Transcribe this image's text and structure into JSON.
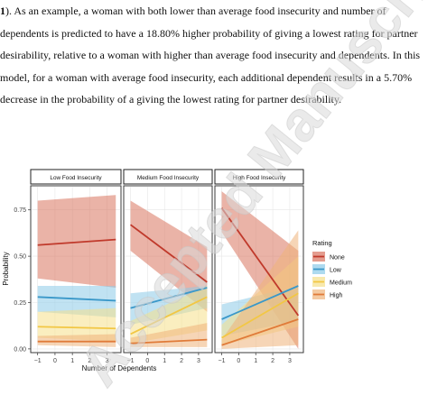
{
  "paragraph": {
    "lines": [
      {
        "bold_prefix": "1",
        "text": "). As an example, a woman with both lower than average food insecurity and number of"
      },
      {
        "bold_prefix": "",
        "text": "dependents is predicted to have a 18.80% higher probability of giving a lowest rating for partner"
      },
      {
        "bold_prefix": "",
        "text": "desirability, relative to a woman with higher than average food insecurity and dependents. In this"
      },
      {
        "bold_prefix": "",
        "text": "model, for a woman with average food insecurity, each additional dependent results in a 5.70%"
      },
      {
        "bold_prefix": "",
        "text": "decrease in the probability of a giving the lowest rating for partner desirability."
      }
    ]
  },
  "watermark": {
    "text": "Accepted Manuscript",
    "color": "#d8d8d8"
  },
  "chart_data": {
    "type": "line",
    "facets": [
      "Low Food Insecurity",
      "Medium Food Insecurity",
      "High Food Insecurity"
    ],
    "xlabel": "Number of Dependents",
    "ylabel": "Probability",
    "xlim": [
      -1.4,
      3.8
    ],
    "ylim": [
      -0.02,
      0.88
    ],
    "x_ticks": [
      -1,
      0,
      1,
      2,
      3
    ],
    "y_ticks": [
      0.0,
      0.25,
      0.5,
      0.75
    ],
    "y_tick_labels": [
      "0.00",
      "0.25",
      "0.50",
      "0.75"
    ],
    "legend": {
      "title": "Rating",
      "position": "right"
    },
    "grid": true,
    "series": [
      {
        "name": "None",
        "color": "#c0392b",
        "band_color": "#d9745f",
        "facets": [
          {
            "x": [
              -1,
              3.5
            ],
            "y": [
              0.56,
              0.59
            ],
            "lo": [
              0.38,
              0.33
            ],
            "hi": [
              0.8,
              0.83
            ]
          },
          {
            "x": [
              -1,
              3.5
            ],
            "y": [
              0.67,
              0.36
            ],
            "lo": [
              0.53,
              0.2
            ],
            "hi": [
              0.8,
              0.55
            ]
          },
          {
            "x": [
              -1,
              3.5
            ],
            "y": [
              0.76,
              0.18
            ],
            "lo": [
              0.63,
              0.0
            ],
            "hi": [
              0.85,
              0.53
            ]
          }
        ]
      },
      {
        "name": "Low",
        "color": "#3a98c9",
        "band_color": "#8ccbe8",
        "facets": [
          {
            "x": [
              -1,
              3.5
            ],
            "y": [
              0.28,
              0.26
            ],
            "lo": [
              0.2,
              0.17
            ],
            "hi": [
              0.34,
              0.34
            ]
          },
          {
            "x": [
              -1,
              3.5
            ],
            "y": [
              0.22,
              0.33
            ],
            "lo": [
              0.13,
              0.22
            ],
            "hi": [
              0.3,
              0.34
            ]
          },
          {
            "x": [
              -1,
              3.5
            ],
            "y": [
              0.16,
              0.34
            ],
            "lo": [
              0.07,
              0.15
            ],
            "hi": [
              0.24,
              0.34
            ]
          }
        ]
      },
      {
        "name": "Medium",
        "color": "#f2c744",
        "band_color": "#f5e08a",
        "facets": [
          {
            "x": [
              -1,
              3.5
            ],
            "y": [
              0.12,
              0.11
            ],
            "lo": [
              0.06,
              0.04
            ],
            "hi": [
              0.2,
              0.22
            ]
          },
          {
            "x": [
              -1,
              3.5
            ],
            "y": [
              0.08,
              0.28
            ],
            "lo": [
              0.03,
              0.1
            ],
            "hi": [
              0.15,
              0.34
            ]
          },
          {
            "x": [
              -1,
              3.5
            ],
            "y": [
              0.06,
              0.3
            ],
            "lo": [
              0.02,
              0.12
            ],
            "hi": [
              0.13,
              0.5
            ]
          }
        ]
      },
      {
        "name": "High",
        "color": "#e07b39",
        "band_color": "#efb37a",
        "facets": [
          {
            "x": [
              -1,
              3.5
            ],
            "y": [
              0.04,
              0.04
            ],
            "lo": [
              0.02,
              0.01
            ],
            "hi": [
              0.07,
              0.08
            ]
          },
          {
            "x": [
              -1,
              3.5
            ],
            "y": [
              0.03,
              0.05
            ],
            "lo": [
              0.01,
              0.01
            ],
            "hi": [
              0.06,
              0.14
            ]
          },
          {
            "x": [
              -1,
              3.5
            ],
            "y": [
              0.02,
              0.16
            ],
            "lo": [
              0.0,
              0.02
            ],
            "hi": [
              0.05,
              0.64
            ]
          }
        ]
      }
    ]
  }
}
